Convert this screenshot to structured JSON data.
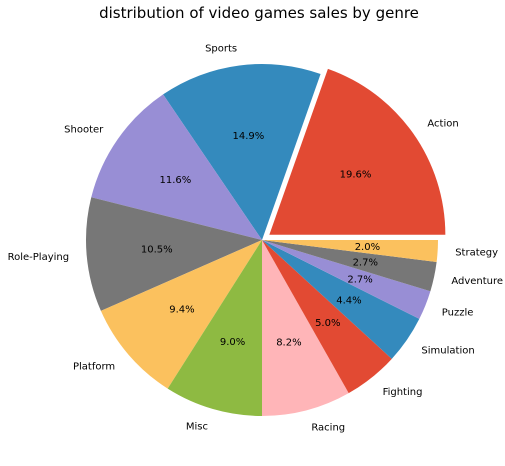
{
  "chart_data": {
    "type": "pie",
    "title": "distribution of video games sales by genre",
    "start_angle_deg": 0,
    "direction": "counterclockwise",
    "slices": [
      {
        "label": "Action",
        "value": 19.6,
        "pct_label": "19.6%",
        "color": "#E24A33",
        "explode": true
      },
      {
        "label": "Sports",
        "value": 14.9,
        "pct_label": "14.9%",
        "color": "#348ABD"
      },
      {
        "label": "Shooter",
        "value": 11.6,
        "pct_label": "11.6%",
        "color": "#988ED5"
      },
      {
        "label": "Role-Playing",
        "value": 10.5,
        "pct_label": "10.5%",
        "color": "#777777"
      },
      {
        "label": "Platform",
        "value": 9.4,
        "pct_label": "9.4%",
        "color": "#FBC15E"
      },
      {
        "label": "Misc",
        "value": 9.0,
        "pct_label": "9.0%",
        "color": "#8EBA42"
      },
      {
        "label": "Racing",
        "value": 8.2,
        "pct_label": "8.2%",
        "color": "#FFB5B8"
      },
      {
        "label": "Fighting",
        "value": 5.0,
        "pct_label": "5.0%",
        "color": "#E24A33"
      },
      {
        "label": "Simulation",
        "value": 4.4,
        "pct_label": "4.4%",
        "color": "#348ABD"
      },
      {
        "label": "Puzzle",
        "value": 2.7,
        "pct_label": "2.7%",
        "color": "#988ED5"
      },
      {
        "label": "Adventure",
        "value": 2.7,
        "pct_label": "2.7%",
        "color": "#777777"
      },
      {
        "label": "Strategy",
        "value": 2.0,
        "pct_label": "2.0%",
        "color": "#FBC15E"
      }
    ]
  }
}
